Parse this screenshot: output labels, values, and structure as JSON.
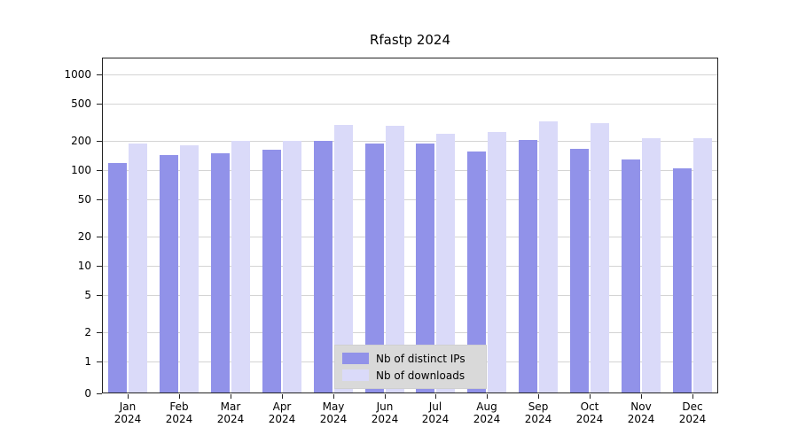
{
  "chart_data": {
    "type": "bar",
    "title": "Rfastp 2024",
    "categories": [
      "Jan",
      "Feb",
      "Mar",
      "Apr",
      "May",
      "Jun",
      "Jul",
      "Aug",
      "Sep",
      "Oct",
      "Nov",
      "Dec"
    ],
    "year_label": "2024",
    "series": [
      {
        "name": "Nb of distinct IPs",
        "color": "#9192e9",
        "values": [
          118,
          143,
          150,
          165,
          202,
          189,
          188,
          158,
          205,
          168,
          130,
          105
        ]
      },
      {
        "name": "Nb of downloads",
        "color": "#dadaf9",
        "values": [
          190,
          181,
          201,
          202,
          295,
          290,
          238,
          252,
          320,
          310,
          215,
          215
        ]
      }
    ],
    "yticks": [
      0,
      1,
      2,
      5,
      10,
      20,
      50,
      100,
      200,
      500,
      1000
    ],
    "xlabel": "",
    "ylabel": "",
    "scale": "log",
    "ylim": [
      0,
      1000
    ],
    "grid": true,
    "legend_position": "bottom-center",
    "frame_color": "#222222",
    "grid_color": "#d4d4d4",
    "background_color": "#ffffff"
  }
}
